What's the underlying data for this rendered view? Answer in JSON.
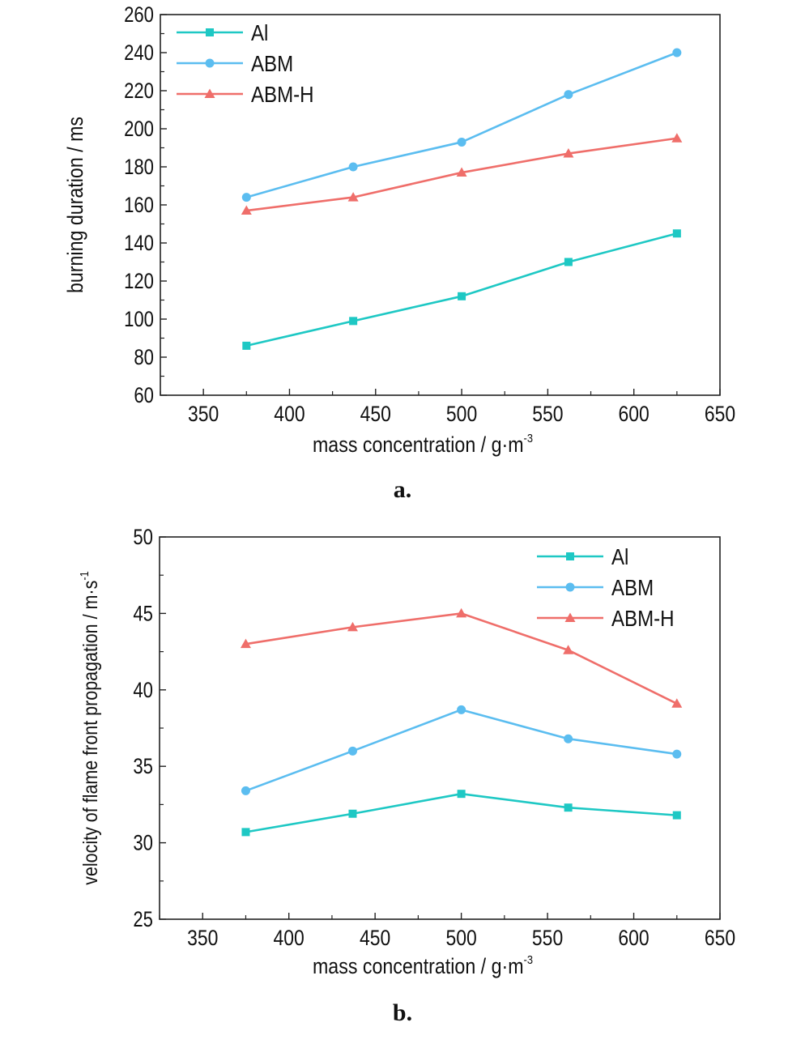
{
  "colors": {
    "al": "#1ec8c4",
    "abm": "#5bbdf0",
    "abmh": "#ef6e6a",
    "axis": "#222222"
  },
  "chart_data": [
    {
      "type": "line",
      "panel_label": "a.",
      "xlabel": "mass concentration / g·m",
      "xlabel_sup": "-3",
      "ylabel": "burning duration / ms",
      "xlim": [
        325,
        650
      ],
      "ylim": [
        60,
        260
      ],
      "xticks": [
        350,
        400,
        450,
        500,
        550,
        600,
        650
      ],
      "yticks": [
        60,
        80,
        100,
        120,
        140,
        160,
        180,
        200,
        220,
        240,
        260
      ],
      "legend_position": "top-left",
      "x": [
        375,
        437,
        500,
        562,
        625
      ],
      "series": [
        {
          "name": "Al",
          "marker": "square",
          "values": [
            86,
            99,
            112,
            130,
            145
          ]
        },
        {
          "name": "ABM",
          "marker": "circle",
          "values": [
            164,
            180,
            193,
            218,
            240
          ]
        },
        {
          "name": "ABM-H",
          "marker": "triangle",
          "values": [
            157,
            164,
            177,
            187,
            195
          ]
        }
      ]
    },
    {
      "type": "line",
      "panel_label": "b.",
      "xlabel": "mass concentration / g·m",
      "xlabel_sup": "-3",
      "ylabel": "velocity of flame front propagation / m·s",
      "ylabel_sup": "-1",
      "xlim": [
        325,
        650
      ],
      "ylim": [
        25,
        50
      ],
      "xticks": [
        350,
        400,
        450,
        500,
        550,
        600,
        650
      ],
      "yticks": [
        25,
        30,
        35,
        40,
        45,
        50
      ],
      "legend_position": "top-right",
      "x": [
        375,
        437,
        500,
        562,
        625
      ],
      "series": [
        {
          "name": "Al",
          "marker": "square",
          "values": [
            30.7,
            31.9,
            33.2,
            32.3,
            31.8
          ]
        },
        {
          "name": "ABM",
          "marker": "circle",
          "values": [
            33.4,
            36.0,
            38.7,
            36.8,
            35.8
          ]
        },
        {
          "name": "ABM-H",
          "marker": "triangle",
          "values": [
            43.0,
            44.1,
            45.0,
            42.6,
            39.1
          ]
        }
      ]
    }
  ]
}
